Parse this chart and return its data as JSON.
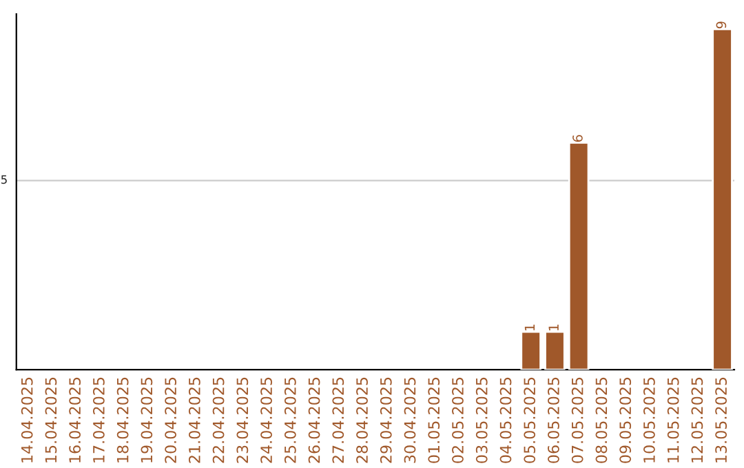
{
  "chart_data": {
    "type": "bar",
    "ylim": [
      0,
      9.4
    ],
    "categories": [
      "14.04.2025",
      "15.04.2025",
      "16.04.2025",
      "17.04.2025",
      "18.04.2025",
      "19.04.2025",
      "20.04.2025",
      "21.04.2025",
      "22.04.2025",
      "23.04.2025",
      "24.04.2025",
      "25.04.2025",
      "26.04.2025",
      "27.04.2025",
      "28.04.2025",
      "29.04.2025",
      "30.04.2025",
      "01.05.2025",
      "02.05.2025",
      "03.05.2025",
      "04.05.2025",
      "05.05.2025",
      "06.05.2025",
      "07.05.2025",
      "08.05.2025",
      "09.05.2025",
      "10.05.2025",
      "11.05.2025",
      "12.05.2025",
      "13.05.2025"
    ],
    "values": [
      null,
      null,
      null,
      null,
      null,
      null,
      null,
      null,
      null,
      null,
      null,
      null,
      null,
      null,
      null,
      null,
      null,
      null,
      null,
      null,
      null,
      1,
      1,
      6,
      null,
      null,
      null,
      null,
      null,
      9
    ],
    "value_labels": [
      null,
      null,
      null,
      null,
      null,
      null,
      null,
      null,
      null,
      null,
      null,
      null,
      null,
      null,
      null,
      null,
      null,
      null,
      null,
      null,
      null,
      "1",
      "1",
      "6",
      null,
      null,
      null,
      null,
      null,
      "9"
    ],
    "color": "#a0582a",
    "ref_lines": [
      {
        "axis": "y",
        "value": 5,
        "label": "5",
        "color": "#cccccc"
      }
    ]
  }
}
